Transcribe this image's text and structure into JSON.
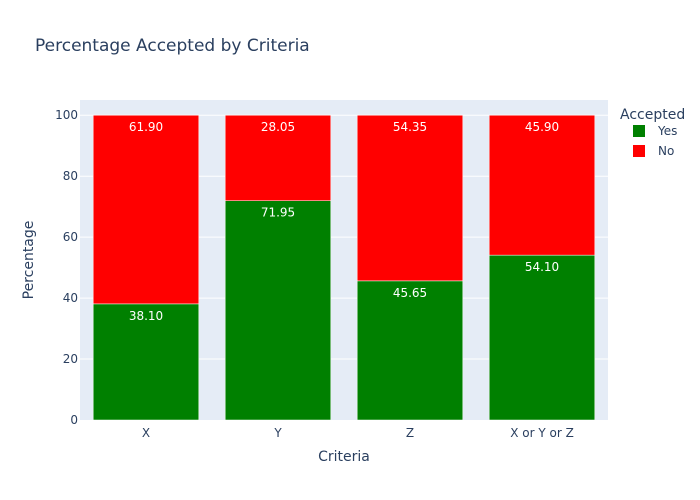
{
  "chart_data": {
    "type": "bar",
    "stacked": true,
    "title": "Percentage Accepted by Criteria",
    "xlabel": "Criteria",
    "ylabel": "Percentage",
    "categories": [
      "X",
      "Y",
      "Z",
      "X or Y or Z"
    ],
    "ylim": [
      0,
      105
    ],
    "yticks": [
      0,
      20,
      40,
      60,
      80,
      100
    ],
    "grid": true,
    "legend": {
      "title": "Accepted",
      "placement": "right"
    },
    "series": [
      {
        "name": "Yes",
        "color": "#008000",
        "values": [
          38.1,
          71.95,
          45.65,
          54.1
        ],
        "labels": [
          "38.10",
          "71.95",
          "45.65",
          "54.10"
        ]
      },
      {
        "name": "No",
        "color": "#ff0000",
        "values": [
          61.9,
          28.05,
          54.35,
          45.9
        ],
        "labels": [
          "61.90",
          "28.05",
          "54.35",
          "45.90"
        ]
      }
    ]
  }
}
